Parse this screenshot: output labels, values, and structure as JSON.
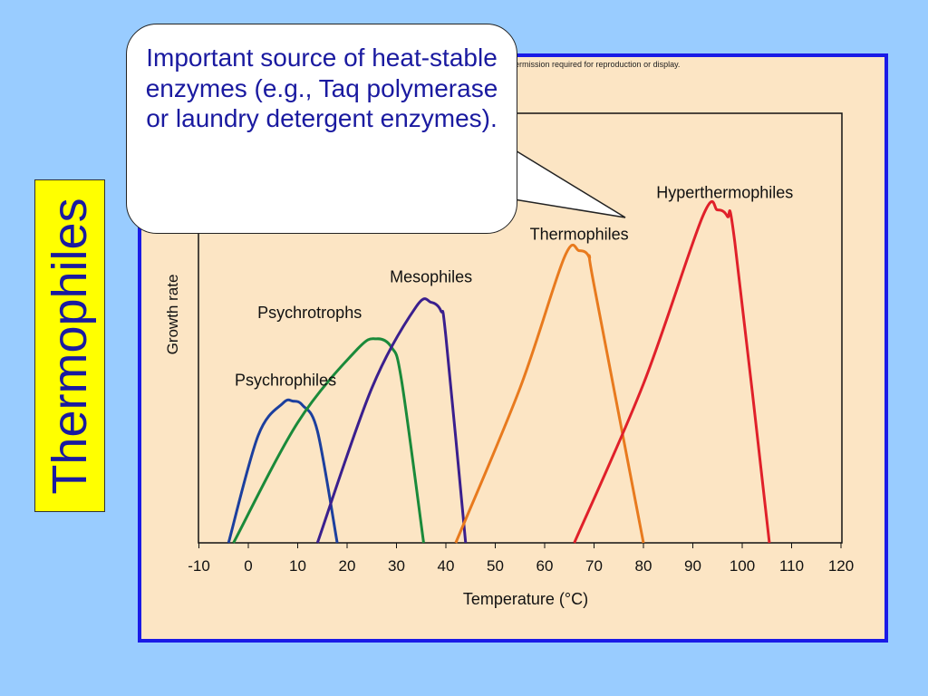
{
  "side_label": "Thermophiles",
  "callout_text": "Important source of heat-stable enzymes (e.g., Taq polymerase or laundry detergent enzymes).",
  "copyright_text": "ermission required for reproduction or display.",
  "chart_data": {
    "type": "line",
    "xlabel": "Temperature (°C)",
    "ylabel": "Growth rate",
    "xlim": [
      -10,
      120
    ],
    "ylim": [
      0,
      10
    ],
    "x_ticks": [
      -10,
      0,
      10,
      20,
      30,
      40,
      50,
      60,
      70,
      80,
      90,
      100,
      110,
      120
    ],
    "series": [
      {
        "name": "Psychrophiles",
        "color": "#1c3f9e",
        "x": [
          -4,
          2,
          7,
          9,
          11,
          14,
          18
        ],
        "y": [
          0,
          2.5,
          3.25,
          3.3,
          3.2,
          2.6,
          0
        ]
      },
      {
        "name": "Psychrotrophs",
        "color": "#1a8a3a",
        "x": [
          -3,
          10,
          22,
          26,
          29,
          31,
          35.5
        ],
        "y": [
          0,
          2.8,
          4.5,
          4.75,
          4.55,
          3.8,
          0
        ]
      },
      {
        "name": "Mesophiles",
        "color": "#3a1f8e",
        "x": [
          14,
          25,
          34,
          37,
          39,
          40,
          44
        ],
        "y": [
          0,
          3.6,
          5.5,
          5.6,
          5.4,
          4.8,
          0
        ]
      },
      {
        "name": "Thermophiles",
        "color": "#e87a1e",
        "x": [
          42,
          55,
          64,
          67,
          69,
          70,
          80
        ],
        "y": [
          0,
          3.6,
          6.65,
          6.8,
          6.65,
          6,
          0
        ]
      },
      {
        "name": "Hyperthermophiles",
        "color": "#e0202a",
        "x": [
          66,
          80,
          92,
          95,
          97,
          98.5,
          105.5
        ],
        "y": [
          0,
          3.7,
          7.6,
          7.75,
          7.6,
          7.0,
          0
        ]
      }
    ]
  }
}
